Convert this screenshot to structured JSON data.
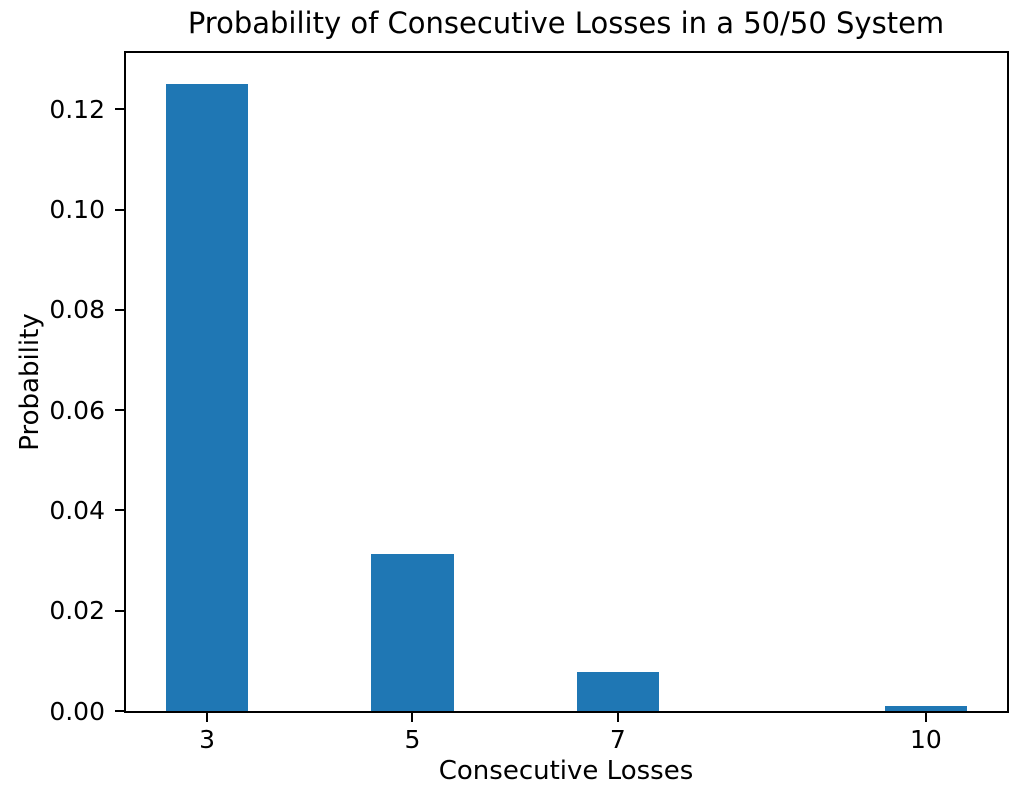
{
  "chart_data": {
    "type": "bar",
    "title": "Probability of Consecutive Losses in a 50/50 System",
    "xlabel": "Consecutive Losses",
    "ylabel": "Probability",
    "x": [
      3,
      5,
      7,
      10
    ],
    "xtick_labels": [
      "3",
      "5",
      "7",
      "10"
    ],
    "values": [
      0.125,
      0.03125,
      0.0078125,
      0.0009765625
    ],
    "bar_width": 0.8,
    "bar_color": "#1f77b4",
    "xlim": [
      2.21,
      10.79
    ],
    "ylim": [
      0,
      0.13125
    ],
    "yticks": [
      0.0,
      0.02,
      0.04,
      0.06,
      0.08,
      0.1,
      0.12
    ],
    "ytick_labels": [
      "0.00",
      "0.02",
      "0.04",
      "0.06",
      "0.08",
      "0.10",
      "0.12"
    ],
    "grid": false,
    "legend": null,
    "background_color": "#ffffff",
    "spine_color": "#000000"
  }
}
